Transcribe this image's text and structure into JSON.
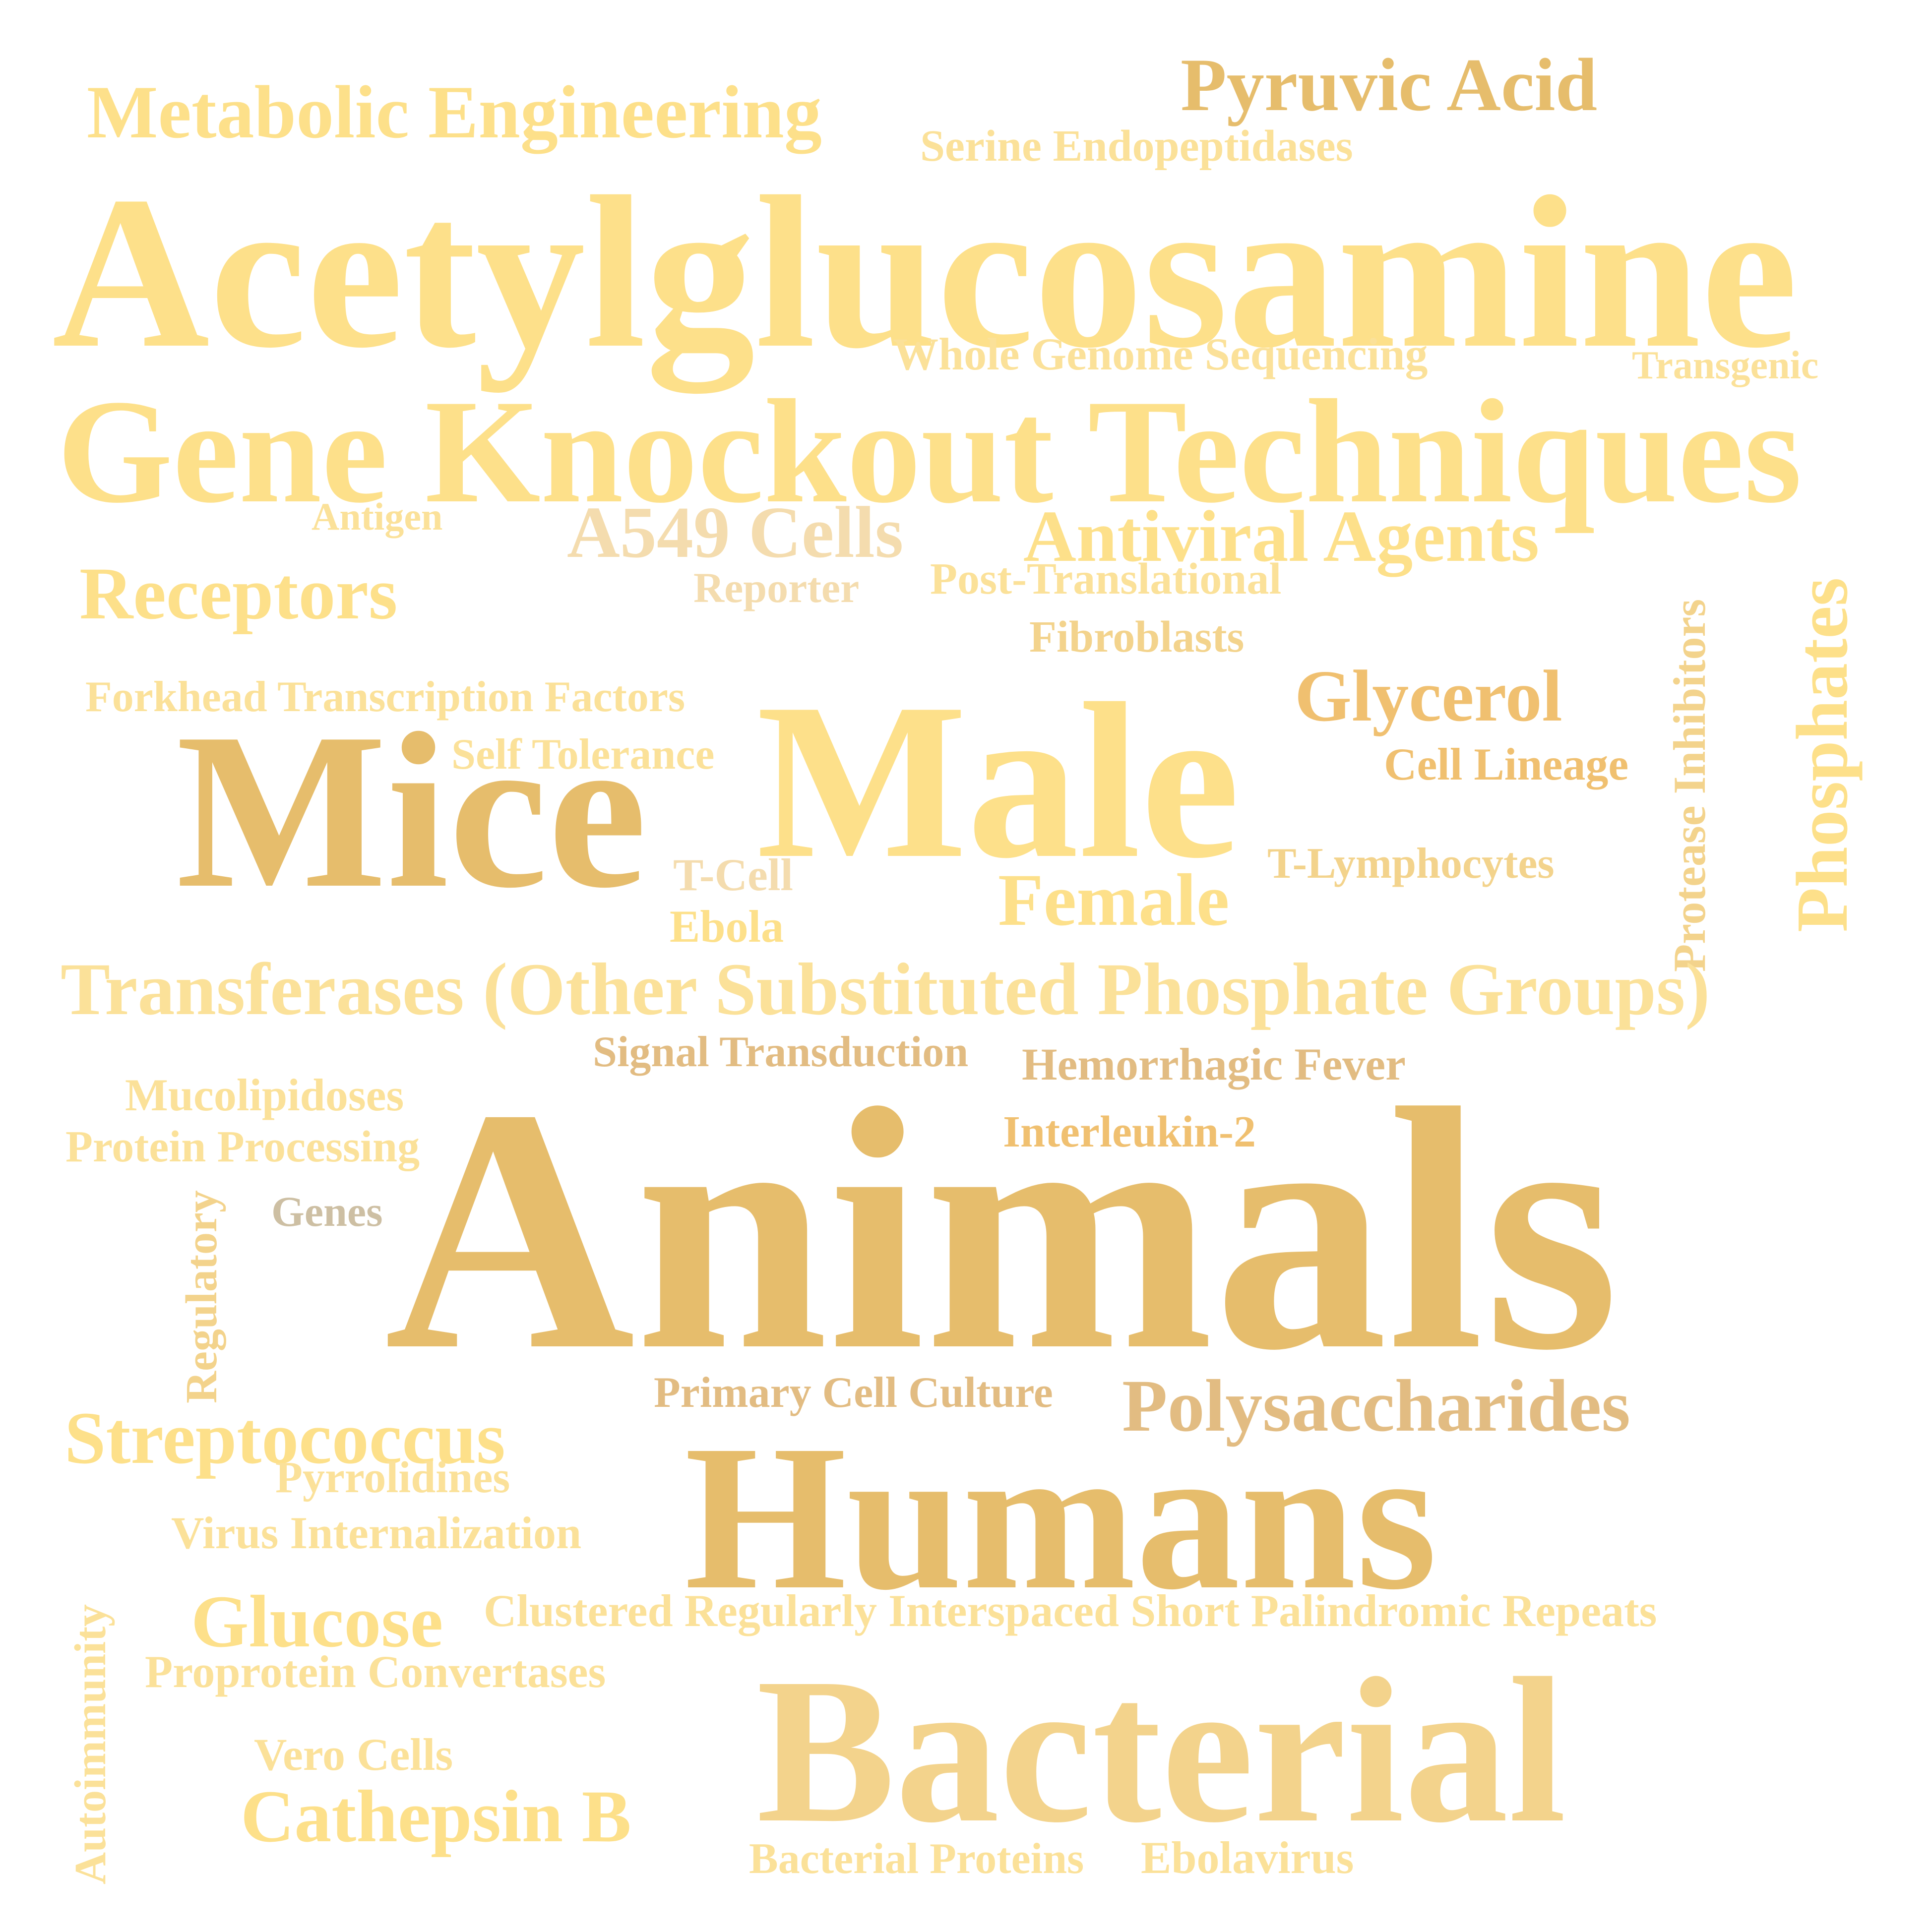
{
  "palette": {
    "light_yellow": "#fde08a",
    "pale_yellow": "#fbe199",
    "gold": "#e6bd6c",
    "tan": "#e2bc82",
    "amber": "#f0c070",
    "light_tan": "#f3d38c",
    "cream": "#f4dcae",
    "grey_beige": "#cdbfa3"
  },
  "words": [
    "Metabolic Engineering",
    "Pyruvic Acid",
    "Serine Endopeptidases",
    "Acetylglucosamine",
    "Whole Genome Sequencing",
    "Transgenic",
    "Gene Knockout Techniques",
    "Antigen",
    "A549 Cells",
    "Antiviral Agents",
    "Receptors",
    "Reporter",
    "Post-Translational",
    "Fibroblasts",
    "Protease Inhibitors",
    "Phosphates",
    "Forkhead Transcription Factors",
    "Glycerol",
    "Self Tolerance",
    "Cell Lineage",
    "Mice",
    "Male",
    "T-Lymphocytes",
    "T-Cell",
    "Female",
    "Ebola",
    "Transferases (Other Substituted Phosphate Groups)",
    "Signal Transduction",
    "Hemorrhagic Fever",
    "Mucolipidoses",
    "Interleukin-2",
    "Protein Processing",
    "Regulatory",
    "Genes",
    "Animals",
    "Primary Cell Culture",
    "Polysaccharides",
    "Streptococcus",
    "Pyrrolidines",
    "Humans",
    "Virus Internalization",
    "Autoimmunity",
    "Glucose",
    "Clustered Regularly Interspaced Short Palindromic Repeats",
    "Proprotein Convertases",
    "Bacterial",
    "Vero Cells",
    "Cathepsin B",
    "Bacterial Proteins",
    "Ebolavirus"
  ]
}
